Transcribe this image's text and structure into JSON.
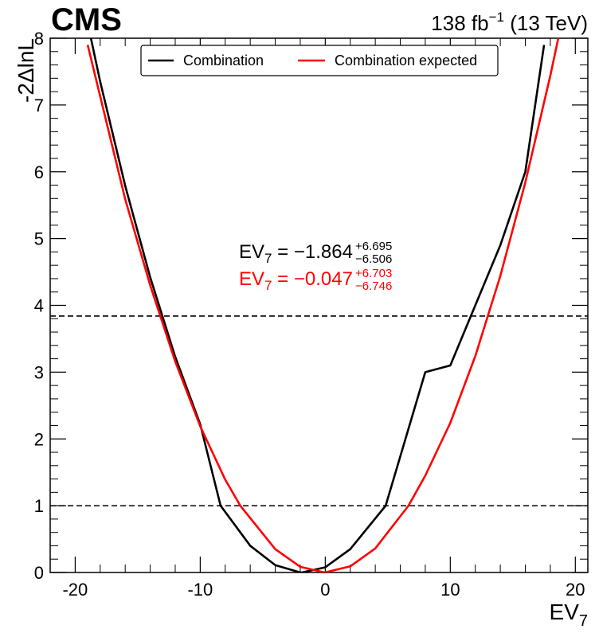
{
  "header": {
    "experiment": "CMS",
    "lumi_main": "138 fb",
    "lumi_sup": "−1",
    "lumi_energy": " (13 TeV)"
  },
  "axes": {
    "ylabel": "-2ΔlnL",
    "xlabel_main": "EV",
    "xlabel_sub": "7"
  },
  "results": {
    "observed": {
      "prefix": "EV",
      "sub": "7",
      "value_text": " = −1.864",
      "up": "+6.695",
      "down": "−6.506",
      "color": "#000000"
    },
    "expected": {
      "prefix": "EV",
      "sub": "7",
      "value_text": " = −0.047",
      "up": "+6.703",
      "down": "−6.746",
      "color": "#ff0000"
    }
  },
  "chart_data": {
    "type": "line",
    "xlim": [
      -22,
      21
    ],
    "ylim": [
      0,
      8
    ],
    "xticks": [
      -20,
      -10,
      0,
      10,
      20
    ],
    "yticks": [
      0,
      1,
      2,
      3,
      4,
      5,
      6,
      7,
      8
    ],
    "xticklabels": [
      "-20",
      "-10",
      "0",
      "10",
      "20"
    ],
    "yticklabels": [
      "0",
      "1",
      "2",
      "3",
      "4",
      "5",
      "6",
      "7",
      "8"
    ],
    "reference_lines": [
      1,
      3.84
    ],
    "legend_position": "top-center",
    "series": [
      {
        "name": "Combination",
        "color": "#000000",
        "x": [
          -20.0,
          -18.0,
          -16.0,
          -14.0,
          -12.0,
          -10.0,
          -8.37,
          -6.0,
          -4.0,
          -2.0,
          -1.864,
          0.0,
          2.0,
          4.831,
          8.0,
          10.0,
          12.0,
          14.0,
          16.0,
          17.5
        ],
        "y": [
          9.1,
          7.35,
          5.79,
          4.42,
          3.23,
          2.22,
          1.0,
          0.4,
          0.11,
          0.0004,
          0.0,
          0.078,
          0.35,
          1.0,
          3.0,
          3.1,
          4.0,
          4.9,
          6.0,
          7.9
        ]
      },
      {
        "name": "Combination expected",
        "color": "#ff0000",
        "x": [
          -19.0,
          -16.0,
          -14.0,
          -12.0,
          -10.0,
          -8.0,
          -6.793,
          -4.0,
          -2.0,
          -0.047,
          2.0,
          4.0,
          6.656,
          8.0,
          10.0,
          12.0,
          14.0,
          16.0,
          18.0,
          19.0
        ],
        "y": [
          7.9,
          5.59,
          4.3,
          3.16,
          2.19,
          1.39,
          1.0,
          0.35,
          0.085,
          0.0,
          0.092,
          0.36,
          1.0,
          1.45,
          2.24,
          3.24,
          4.44,
          5.84,
          7.44,
          8.32
        ]
      }
    ]
  }
}
